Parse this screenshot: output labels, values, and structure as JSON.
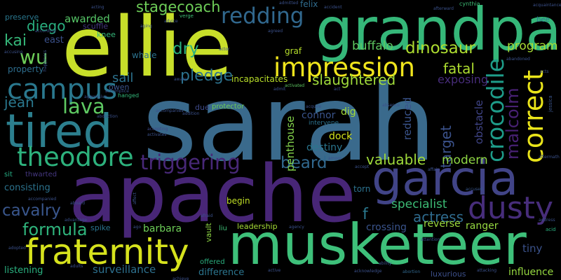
{
  "words": [
    {
      "key": "sarah",
      "text": "sarah",
      "color": "#3a6a8c"
    },
    {
      "key": "ellie",
      "text": "ellie",
      "color": "#c8df2a"
    },
    {
      "key": "grandpa",
      "text": "grandpa",
      "color": "#35b779"
    },
    {
      "key": "apache",
      "text": "apache",
      "color": "#482677"
    },
    {
      "key": "musketeer",
      "text": "musketeer",
      "color": "#3ec07a"
    },
    {
      "key": "garcia",
      "text": "garcia",
      "color": "#414487"
    },
    {
      "key": "tired",
      "text": "tired",
      "color": "#2c7f8e"
    },
    {
      "key": "fraternity",
      "text": "fraternity",
      "color": "#d6e21d"
    },
    {
      "key": "impression",
      "text": "impression",
      "color": "#f0e51d"
    },
    {
      "key": "dusty",
      "text": "dusty",
      "color": "#472d7b"
    },
    {
      "key": "correct",
      "text": "correct",
      "color": "#eae51a"
    },
    {
      "key": "crocodile",
      "text": "crocodile",
      "color": "#1e9c89"
    },
    {
      "key": "campus",
      "text": "campus",
      "color": "#2a788e"
    },
    {
      "key": "theodore",
      "text": "theodore",
      "color": "#2db27d"
    },
    {
      "key": "redding",
      "text": "redding",
      "color": "#31688e"
    },
    {
      "key": "triggering",
      "text": "triggering",
      "color": "#482878"
    },
    {
      "key": "lava",
      "text": "lava",
      "color": "#5ec962"
    },
    {
      "key": "wu",
      "text": "wu",
      "color": "#6ece58"
    },
    {
      "key": "kai",
      "text": "kai",
      "color": "#35b779"
    },
    {
      "key": "formula",
      "text": "formula",
      "color": "#2fb47c"
    },
    {
      "key": "cavalry",
      "text": "cavalry",
      "color": "#39568c"
    },
    {
      "key": "malcolm",
      "text": "malcolm",
      "color": "#482173"
    },
    {
      "key": "dinosaur",
      "text": "dinosaur",
      "color": "#addc30"
    },
    {
      "key": "beard",
      "text": "beard",
      "color": "#31688e"
    },
    {
      "key": "pledge",
      "text": "pledge",
      "color": "#2c728e"
    },
    {
      "key": "slaughtered",
      "text": "slaughtered",
      "color": "#9fda3a"
    },
    {
      "key": "stagecoach",
      "text": "stagecoach",
      "color": "#6ece58"
    },
    {
      "key": "diego",
      "text": "diego",
      "color": "#29af7f"
    },
    {
      "key": "dry",
      "text": "dry",
      "color": "#2ab07f"
    },
    {
      "key": "fatal",
      "text": "fatal",
      "color": "#addc30"
    },
    {
      "key": "program",
      "text": "program",
      "color": "#a8db34"
    },
    {
      "key": "target",
      "text": "target",
      "color": "#3b528b"
    },
    {
      "key": "jean",
      "text": "jean",
      "color": "#2a788e"
    },
    {
      "key": "valuable",
      "text": "valuable",
      "color": "#9fda3a"
    },
    {
      "key": "modern",
      "text": "modern",
      "color": "#8fd744"
    },
    {
      "key": "actress",
      "text": "actress",
      "color": "#2f6b8e"
    },
    {
      "key": "specialist",
      "text": "specialist",
      "color": "#3cbb75"
    },
    {
      "key": "f",
      "text": "f",
      "color": "#2a788e"
    },
    {
      "key": "sail",
      "text": "sail",
      "color": "#2c728e"
    },
    {
      "key": "buffalo",
      "text": "buffalo",
      "color": "#5ec962"
    },
    {
      "key": "exposing",
      "text": "exposing",
      "color": "#472c7a"
    },
    {
      "key": "reduced",
      "text": "reduced",
      "color": "#3a548c"
    },
    {
      "key": "obstacle",
      "text": "obstacle",
      "color": "#404588"
    },
    {
      "key": "penthouse",
      "text": "penthouse",
      "color": "#84d44b"
    },
    {
      "key": "awarded",
      "text": "awarded",
      "color": "#56c667"
    },
    {
      "key": "surveillance",
      "text": "surveillance",
      "color": "#2d708e"
    },
    {
      "key": "barbara",
      "text": "barbara",
      "color": "#6ece58"
    },
    {
      "key": "crossing",
      "text": "crossing",
      "color": "#3a548c"
    },
    {
      "key": "reverse",
      "text": "reverse",
      "color": "#9bd93c"
    },
    {
      "key": "ranger",
      "text": "ranger",
      "color": "#95d840"
    },
    {
      "key": "dig",
      "text": "dig",
      "color": "#a2da37"
    },
    {
      "key": "connor",
      "text": "connor",
      "color": "#3a548c"
    },
    {
      "key": "dock",
      "text": "dock",
      "color": "#d2e21b"
    },
    {
      "key": "destiny",
      "text": "destiny",
      "color": "#2a768e"
    },
    {
      "key": "tiny",
      "text": "tiny",
      "color": "#3b528b"
    },
    {
      "key": "influence",
      "text": "influence",
      "color": "#95d840"
    },
    {
      "key": "luxurious",
      "text": "luxurious",
      "color": "#3c4f8a"
    },
    {
      "key": "difference",
      "text": "difference",
      "color": "#2b758e"
    },
    {
      "key": "leadership",
      "text": "leadership",
      "color": "#a5db36"
    },
    {
      "key": "begin",
      "text": "begin",
      "color": "#c0df25"
    },
    {
      "key": "torn",
      "text": "torn",
      "color": "#2c728e"
    },
    {
      "key": "listening",
      "text": "listening",
      "color": "#2ab07f"
    },
    {
      "key": "consisting",
      "text": "consisting",
      "color": "#2c738e"
    },
    {
      "key": "property",
      "text": "property",
      "color": "#2e6e8e"
    },
    {
      "key": "preserve",
      "text": "preserve",
      "color": "#2a778e"
    },
    {
      "key": "east",
      "text": "east",
      "color": "#3b518b"
    },
    {
      "key": "whale",
      "text": "whale",
      "color": "#2c728e"
    },
    {
      "key": "graf",
      "text": "graf",
      "color": "#b5de2b"
    },
    {
      "key": "incapacitates",
      "text": "incapacitates",
      "color": "#b8de29"
    },
    {
      "key": "felix",
      "text": "felix",
      "color": "#2f6c8e"
    },
    {
      "key": "scuffle",
      "text": "scuffle",
      "color": "#453781"
    },
    {
      "key": "knee",
      "text": "knee",
      "color": "#35b779"
    },
    {
      "key": "owen",
      "text": "owen",
      "color": "#3a548c"
    },
    {
      "key": "due",
      "text": "due",
      "color": "#3e4a89"
    },
    {
      "key": "protector",
      "text": "protector",
      "color": "#6ece58"
    },
    {
      "key": "intervene",
      "text": "intervene",
      "color": "#2c728e"
    },
    {
      "key": "spike",
      "text": "spike",
      "color": "#2b748e"
    },
    {
      "key": "vault",
      "text": "vault",
      "color": "#8fd744"
    },
    {
      "key": "liu",
      "text": "liu",
      "color": "#3dbc74"
    },
    {
      "key": "offered",
      "text": "offered",
      "color": "#2ab07f"
    },
    {
      "key": "thwarted",
      "text": "thwarted",
      "color": "#453781"
    },
    {
      "key": "sit",
      "text": "sit",
      "color": "#25ab82"
    },
    {
      "key": "hanged",
      "text": "hanged",
      "color": "#33b679"
    },
    {
      "key": "bee",
      "text": "bee",
      "color": "#2a788e"
    },
    {
      "key": "cynthia",
      "text": "cynthia",
      "color": "#3dbc74"
    },
    {
      "key": "verge",
      "text": "verge",
      "color": "#3dbc74"
    },
    {
      "key": "jessica",
      "text": "jessica",
      "color": "#3a548c"
    },
    {
      "key": "acid",
      "text": "acid",
      "color": "#2ab07f"
    },
    {
      "key": "abortion",
      "text": "abortion",
      "color": "#31688e"
    },
    {
      "key": "accused",
      "text": "accused",
      "color": "#39568c"
    },
    {
      "key": "activated",
      "text": "activated",
      "color": "#5ec962"
    },
    {
      "key": "accepting",
      "text": "accepting",
      "color": "#3f4889"
    },
    {
      "key": "activates",
      "text": "activates",
      "color": "#3b518b"
    },
    {
      "key": "advice",
      "text": "advice",
      "color": "#3b518b"
    },
    {
      "key": "addition",
      "text": "addition",
      "color": "#3b518b"
    },
    {
      "key": "actor",
      "text": "actor",
      "color": "#3b518b"
    },
    {
      "key": "agreed",
      "text": "agreed",
      "color": "#3b518b"
    },
    {
      "key": "aftermath",
      "text": "aftermath",
      "color": "#3b518b"
    },
    {
      "key": "abandoned",
      "text": "abandoned",
      "color": "#3b518b"
    },
    {
      "key": "acquaintance",
      "text": "acquaintance",
      "color": "#3b518b"
    },
    {
      "key": "accompanied",
      "text": "accompanied",
      "color": "#3b518b"
    },
    {
      "key": "afterward",
      "text": "afterward",
      "color": "#3b518b"
    },
    {
      "key": "aggressive",
      "text": "aggressive",
      "color": "#3b518b"
    },
    {
      "key": "according",
      "text": "according",
      "color": "#3b518b"
    },
    {
      "key": "acknowledge",
      "text": "acknowledge",
      "color": "#3b518b"
    },
    {
      "key": "acquire",
      "text": "acquire",
      "color": "#3b518b"
    },
    {
      "key": "happiness",
      "text": "happiness",
      "color": "#3b518b"
    },
    {
      "key": "acting",
      "text": "acting",
      "color": "#3b518b"
    },
    {
      "key": "admit",
      "text": "admit",
      "color": "#3b518b"
    },
    {
      "key": "accident",
      "text": "accident",
      "color": "#3b518b"
    },
    {
      "key": "affair",
      "text": "affair",
      "color": "#3b518b"
    },
    {
      "key": "attention",
      "text": "attention",
      "color": "#3b518b"
    },
    {
      "key": "agency",
      "text": "agency",
      "color": "#3b518b"
    },
    {
      "key": "aging",
      "text": "aging",
      "color": "#3b518b"
    },
    {
      "key": "affect",
      "text": "affect",
      "color": "#3b518b"
    },
    {
      "key": "amore",
      "text": "amore",
      "color": "#3b518b"
    },
    {
      "key": "abduction",
      "text": "abduction",
      "color": "#3b518b"
    },
    {
      "key": "accompanies",
      "text": "accompanies",
      "color": "#3b518b"
    },
    {
      "key": "active",
      "text": "active",
      "color": "#3b518b"
    },
    {
      "key": "attacking",
      "text": "attacking",
      "color": "#3b518b"
    },
    {
      "key": "aboard",
      "text": "aboard",
      "color": "#3b518b"
    },
    {
      "key": "accept",
      "text": "accept",
      "color": "#3b518b"
    },
    {
      "key": "accomplice",
      "text": "accomplice",
      "color": "#3b518b"
    },
    {
      "key": "admitted",
      "text": "admitted",
      "color": "#3b518b"
    },
    {
      "key": "accusing",
      "text": "accusing",
      "color": "#3b518b"
    },
    {
      "key": "adopted",
      "text": "adopted",
      "color": "#3b518b"
    },
    {
      "key": "advantage",
      "text": "advantage",
      "color": "#3b518b"
    },
    {
      "key": "address",
      "text": "address",
      "color": "#3b518b"
    },
    {
      "key": "afraid",
      "text": "afraid",
      "color": "#3b518b"
    },
    {
      "key": "absence",
      "text": "absence",
      "color": "#3b518b"
    },
    {
      "key": "ability",
      "text": "ability",
      "color": "#3b518b"
    },
    {
      "key": "aware",
      "text": "aware",
      "color": "#3b518b"
    },
    {
      "key": "act",
      "text": "act",
      "color": "#3b518b"
    },
    {
      "key": "achieve",
      "text": "achieve",
      "color": "#3b518b"
    },
    {
      "key": "adults",
      "text": "adults",
      "color": "#3b518b"
    },
    {
      "key": "ago",
      "text": "ago",
      "color": "#3b518b"
    },
    {
      "key": "acts",
      "text": "acts",
      "color": "#3b518b"
    }
  ]
}
